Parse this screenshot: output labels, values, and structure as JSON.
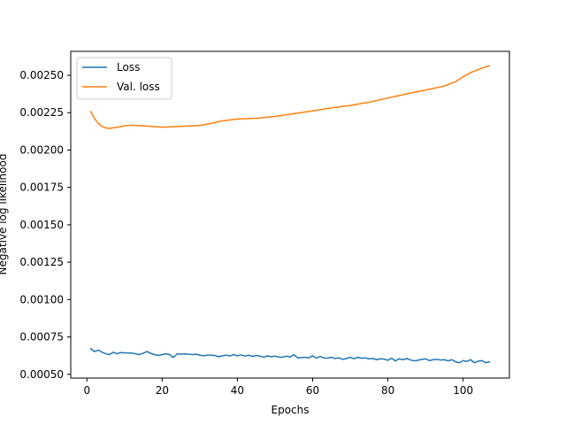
{
  "chart_data": {
    "type": "line",
    "xlabel": "Epochs",
    "ylabel": "Negative log likelihood",
    "xlim": [
      -4.3,
      112.3
    ],
    "ylim": [
      0.000475,
      0.00266
    ],
    "xticks": [
      0,
      20,
      40,
      60,
      80,
      100
    ],
    "xtick_labels": [
      "0",
      "20",
      "40",
      "60",
      "80",
      "100"
    ],
    "yticks": [
      0.0005,
      0.00075,
      0.001,
      0.00125,
      0.0015,
      0.00175,
      0.002,
      0.00225,
      0.0025
    ],
    "ytick_labels": [
      "0.00050",
      "0.00075",
      "0.00100",
      "0.00125",
      "0.00150",
      "0.00175",
      "0.00200",
      "0.00225",
      "0.00250"
    ],
    "grid": false,
    "legend_position": "upper-left",
    "series": [
      {
        "name": "Loss",
        "color": "#1f77b4",
        "x": [
          1,
          2,
          3,
          4,
          5,
          6,
          7,
          8,
          9,
          10,
          11,
          12,
          13,
          14,
          15,
          16,
          17,
          18,
          19,
          20,
          21,
          22,
          23,
          24,
          25,
          26,
          27,
          28,
          29,
          30,
          31,
          32,
          33,
          34,
          35,
          36,
          37,
          38,
          39,
          40,
          41,
          42,
          43,
          44,
          45,
          46,
          47,
          48,
          49,
          50,
          51,
          52,
          53,
          54,
          55,
          56,
          57,
          58,
          59,
          60,
          61,
          62,
          63,
          64,
          65,
          66,
          67,
          68,
          69,
          70,
          71,
          72,
          73,
          74,
          75,
          76,
          77,
          78,
          79,
          80,
          81,
          82,
          83,
          84,
          85,
          86,
          87,
          88,
          89,
          90,
          91,
          92,
          93,
          94,
          95,
          96,
          97,
          98,
          99,
          100,
          101,
          102,
          103,
          104,
          105,
          106,
          107
        ],
        "y": [
          0.000672,
          0.000652,
          0.000662,
          0.000648,
          0.000638,
          0.000632,
          0.000648,
          0.000638,
          0.000646,
          0.000643,
          0.000643,
          0.000642,
          0.000637,
          0.000632,
          0.000642,
          0.000652,
          0.00064,
          0.000632,
          0.000627,
          0.000632,
          0.000637,
          0.000632,
          0.000612,
          0.000637,
          0.000635,
          0.000636,
          0.000635,
          0.000632,
          0.000635,
          0.000628,
          0.000624,
          0.000628,
          0.000628,
          0.000626,
          0.000618,
          0.000624,
          0.000628,
          0.000622,
          0.000632,
          0.000624,
          0.00063,
          0.000622,
          0.000628,
          0.00062,
          0.000626,
          0.000622,
          0.000614,
          0.000624,
          0.000618,
          0.000622,
          0.000616,
          0.000614,
          0.000622,
          0.000616,
          0.000632,
          0.00061,
          0.000612,
          0.000614,
          0.00061,
          0.000624,
          0.000608,
          0.00062,
          0.00061,
          0.000608,
          0.000614,
          0.000606,
          0.00061,
          0.0006,
          0.000606,
          0.000614,
          0.000604,
          0.000614,
          0.000608,
          0.00061,
          0.000604,
          0.000606,
          0.000598,
          0.000604,
          0.000602,
          0.000594,
          0.000608,
          0.00059,
          0.000604,
          0.000598,
          0.000606,
          0.000596,
          0.00059,
          0.000594,
          0.0006,
          0.000604,
          0.000592,
          0.000598,
          0.0006,
          0.000596,
          0.000598,
          0.00059,
          0.000598,
          0.000584,
          0.000578,
          0.000592,
          0.000586,
          0.000598,
          0.000578,
          0.000588,
          0.000592,
          0.000578,
          0.000584
        ]
      },
      {
        "name": "Val. loss",
        "color": "#ff7f0e",
        "x": [
          1,
          2,
          3,
          4,
          5,
          6,
          8,
          10,
          12,
          15,
          20,
          25,
          30,
          33,
          36,
          40,
          45,
          50,
          55,
          60,
          65,
          70,
          75,
          80,
          85,
          90,
          95,
          98,
          100,
          102,
          105,
          107
        ],
        "y": [
          0.002258,
          0.002212,
          0.002178,
          0.002158,
          0.002148,
          0.002145,
          0.002152,
          0.002162,
          0.002166,
          0.002162,
          0.002153,
          0.002158,
          0.002165,
          0.002178,
          0.002195,
          0.002208,
          0.002212,
          0.002225,
          0.002243,
          0.002262,
          0.002282,
          0.002298,
          0.00232,
          0.002348,
          0.002376,
          0.002401,
          0.002428,
          0.002457,
          0.00249,
          0.002518,
          0.002547,
          0.002563
        ]
      }
    ]
  }
}
